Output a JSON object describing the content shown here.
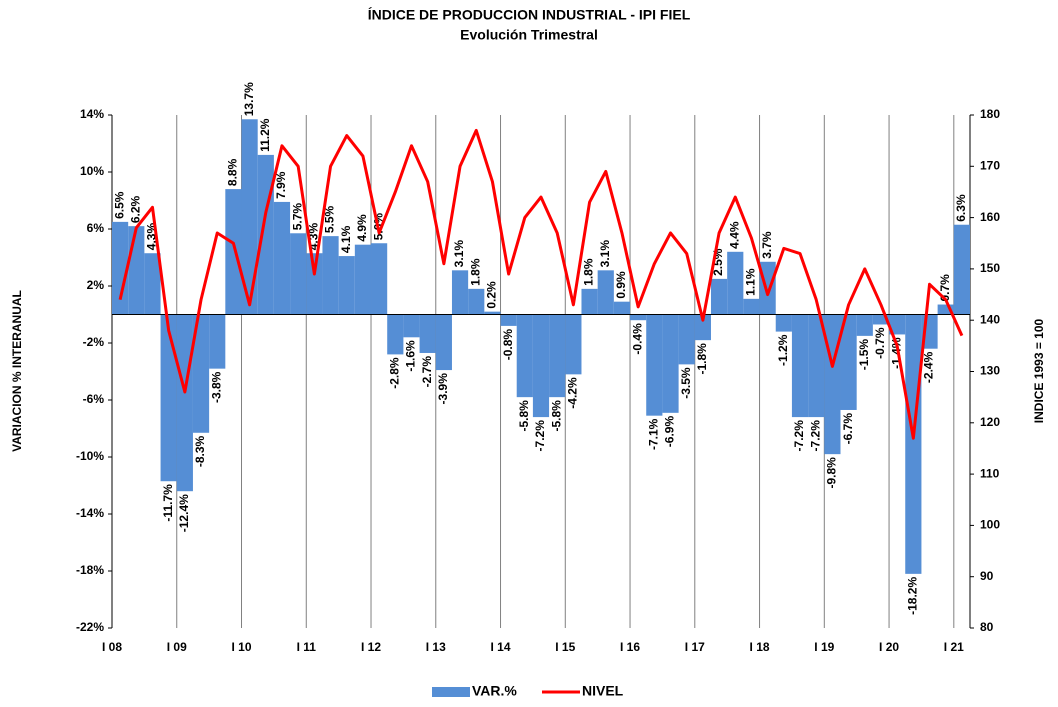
{
  "chart_data": {
    "type": "bar_line",
    "title": "ÍNDICE DE PRODUCCION INDUSTRIAL - IPI FIEL",
    "subtitle": "Evolución Trimestral",
    "y_label": "VARIACION % INTERANUAL",
    "y2_label": "INDICE 1993 = 100",
    "categories": [
      "I 08",
      null,
      null,
      null,
      "I 09",
      null,
      null,
      null,
      "I 10",
      null,
      null,
      null,
      "I 11",
      null,
      null,
      null,
      "I 12",
      null,
      null,
      null,
      "I 13",
      null,
      null,
      null,
      "I 14",
      null,
      null,
      null,
      "I 15",
      null,
      null,
      null,
      "I 16",
      null,
      null,
      null,
      "I 17",
      null,
      null,
      null,
      "I 18",
      null,
      null,
      null,
      "I 19",
      null,
      null,
      null,
      "I 20",
      null,
      null,
      null,
      "I 21"
    ],
    "series": [
      {
        "name": "VAR.%",
        "type": "bar",
        "color": "#558ed5",
        "values": [
          6.5,
          6.2,
          4.3,
          -11.7,
          -12.4,
          -8.3,
          -3.8,
          8.8,
          13.7,
          11.2,
          7.9,
          5.7,
          4.3,
          5.5,
          4.1,
          4.9,
          5.0,
          -2.8,
          -1.6,
          -2.7,
          -3.9,
          3.1,
          1.8,
          0.2,
          -0.8,
          -5.8,
          -7.2,
          -5.8,
          -4.2,
          1.8,
          3.1,
          0.9,
          -0.4,
          -7.1,
          -6.9,
          -3.5,
          -1.8,
          2.5,
          4.4,
          1.1,
          3.7,
          -1.2,
          -7.2,
          -7.2,
          -9.8,
          -6.7,
          -1.5,
          -0.7,
          -1.4,
          -18.2,
          -2.4,
          0.7,
          6.3
        ],
        "value_labels": [
          "6.5%",
          "6.2%",
          "4.3%",
          "-11.7%",
          "-12.4%",
          "-8.3%",
          "-3.8%",
          "8.8%",
          "13.7%",
          "11.2%",
          "7.9%",
          "5.7%",
          "4.3%",
          "5.5%",
          "4.1%",
          "4.9%",
          "5.0%",
          "-2.8%",
          "-1.6%",
          "-2.7%",
          "-3.9%",
          "3.1%",
          "1.8%",
          "0.2%",
          "-0.8%",
          "-5.8%",
          "-7.2%",
          "-5.8%",
          "-4.2%",
          "1.8%",
          "3.1%",
          "0.9%",
          "-0.4%",
          "-7.1%",
          "-6.9%",
          "-3.5%",
          "-1.8%",
          "2.5%",
          "4.4%",
          "1.1%",
          "3.7%",
          "-1.2%",
          "-7.2%",
          "-7.2%",
          "-9.8%",
          "-6.7%",
          "-1.5%",
          "-0.7%",
          "-1.4%",
          "-18.2%",
          "-2.4%",
          "0.7%",
          "6.3%"
        ]
      },
      {
        "name": "NIVEL",
        "type": "line",
        "axis": "y2",
        "color": "#ff0000",
        "values": [
          144,
          158,
          162,
          138,
          126,
          144,
          157,
          155,
          143,
          161,
          174,
          170,
          149,
          170,
          176,
          172,
          157,
          165,
          174,
          167,
          151,
          170,
          177,
          167,
          149,
          160,
          164,
          157,
          143,
          163,
          169,
          157,
          142.6,
          151,
          157,
          153,
          140,
          157,
          164,
          156,
          145,
          154,
          153,
          144,
          131,
          143,
          150,
          143,
          135,
          117,
          147,
          144,
          137
        ]
      }
    ],
    "ylim": [
      -22,
      14
    ],
    "yticks": [
      {
        "value": -22,
        "label": "-22%"
      },
      {
        "value": -18,
        "label": "-18%"
      },
      {
        "value": -14,
        "label": "-14%"
      },
      {
        "value": -10,
        "label": "-10%"
      },
      {
        "value": -6,
        "label": "-6%"
      },
      {
        "value": -2,
        "label": "-2%"
      },
      {
        "value": 2,
        "label": "2%"
      },
      {
        "value": 6,
        "label": "6%"
      },
      {
        "value": 10,
        "label": "10%"
      },
      {
        "value": 14,
        "label": "14%"
      }
    ],
    "y2lim": [
      80,
      180
    ],
    "y2ticks": [
      80,
      90,
      100,
      110,
      120,
      130,
      140,
      150,
      160,
      170,
      180
    ],
    "legend": "bottom"
  }
}
